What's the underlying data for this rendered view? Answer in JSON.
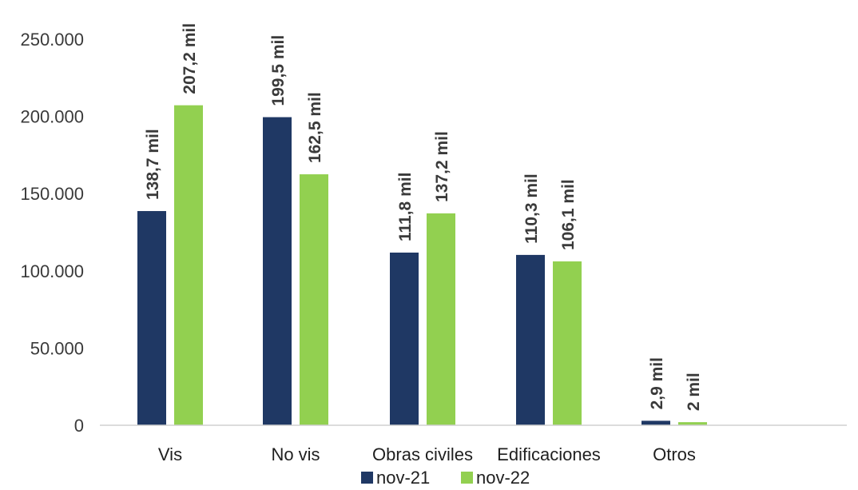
{
  "chart_data": {
    "type": "bar",
    "categories": [
      "Vis",
      "No vis",
      "Obras civiles",
      "Edificaciones",
      "Otros"
    ],
    "series": [
      {
        "name": "nov-21",
        "color": "#1f3864",
        "values": [
          138700,
          199500,
          111800,
          110300,
          2900
        ],
        "labels": [
          "138,7 mil",
          "199,5 mil",
          "111,8 mil",
          "110,3 mil",
          "2,9 mil"
        ]
      },
      {
        "name": "nov-22",
        "color": "#92d050",
        "values": [
          207200,
          162500,
          137200,
          106100,
          2000
        ],
        "labels": [
          "207,2 mil",
          "162,5 mil",
          "137,2 mil",
          "106,1 mil",
          "2 mil"
        ]
      }
    ],
    "ylim": [
      0,
      250000
    ],
    "yticks": [
      0,
      50000,
      100000,
      150000,
      200000,
      250000
    ],
    "ytick_labels": [
      "0",
      "50.000",
      "100.000",
      "150.000",
      "200.000",
      "250.000"
    ],
    "grid": false,
    "legend_position": "bottom"
  }
}
